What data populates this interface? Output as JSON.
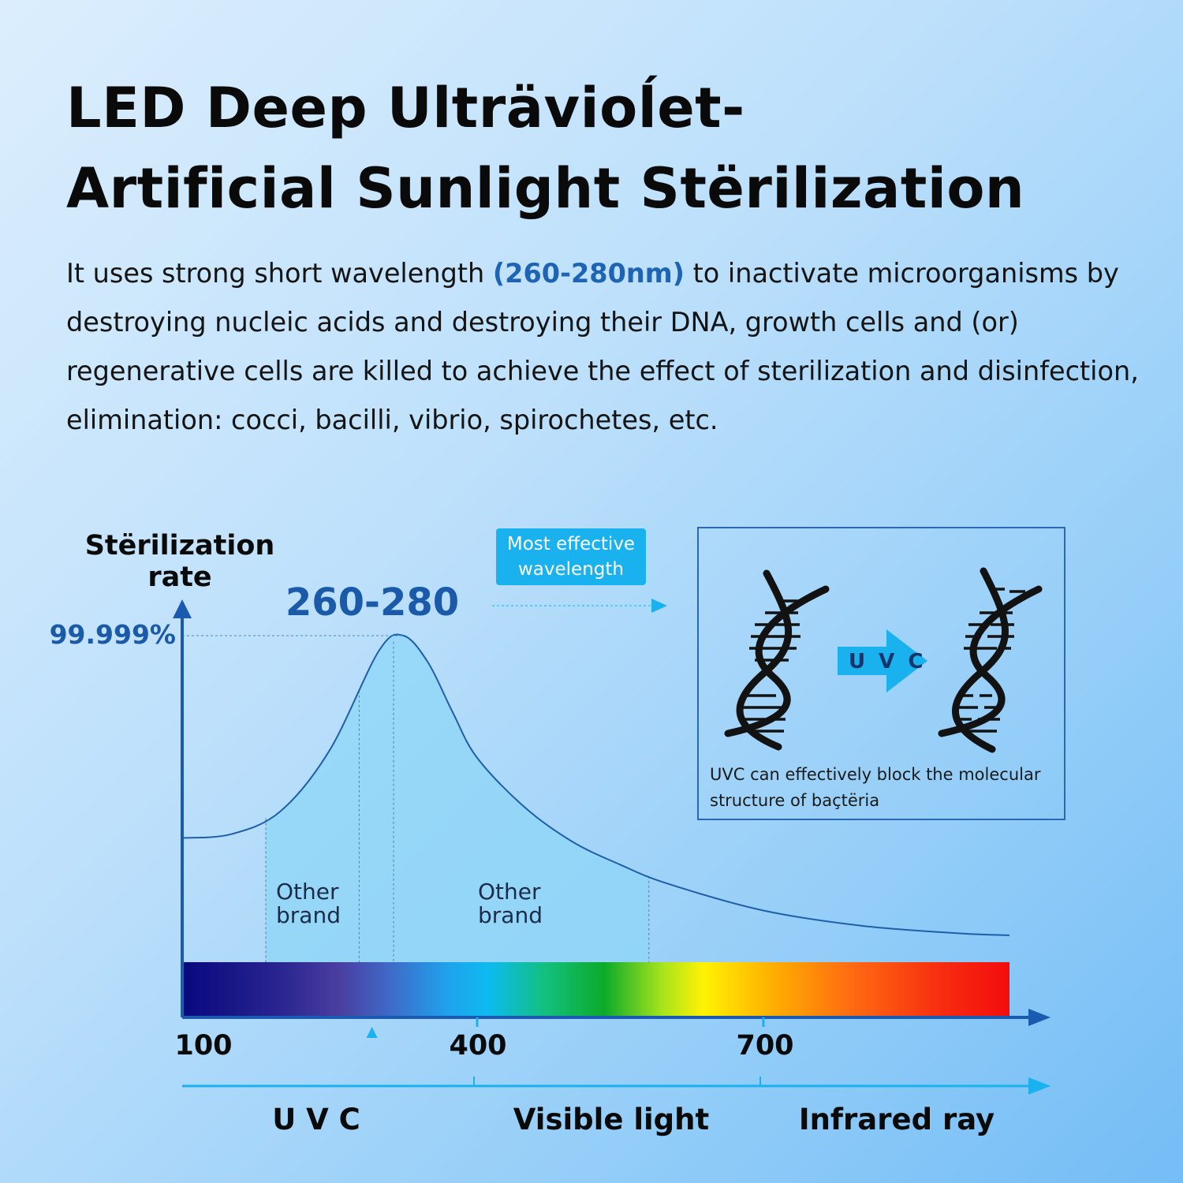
{
  "title": {
    "line1": "LED Deep Ulträvioĺet-",
    "line2": "Artificial Sunlight Stërilization"
  },
  "description": {
    "before": "It uses strong short wavelength ",
    "highlight": "(260-280nm)",
    "after": " to inactivate microorganisms by destroying nucleic acids and destroying their DNA, growth cells and (or) regenerative cells are killed to achieve the effect of sterilization and disinfection, elimination: cocci, bacilli, vibrio, spirochetes, etc."
  },
  "colors": {
    "accent": "#1a5aa8",
    "badge": "#1ab1ef",
    "axis": "#1a5ab0",
    "curve": "#1f5ea8",
    "fill": "#8ed6f7"
  },
  "chart_data": {
    "type": "area",
    "ylabel": "Stërilization rate",
    "y_peak_label": "99.999%",
    "peak_label": "260-280",
    "x_ticks": [
      "100",
      "400",
      "700"
    ],
    "x_tick_values": [
      100,
      400,
      700
    ],
    "xlim": [
      100,
      950
    ],
    "ylim": [
      0,
      100
    ],
    "series": [
      {
        "x": [
          100,
          150,
          200,
          250,
          300,
          325,
          350,
          375,
          400,
          450,
          500,
          550,
          600,
          700,
          800,
          900,
          950
        ],
        "values": [
          47,
          48,
          54,
          70,
          96,
          100,
          93,
          80,
          68,
          55,
          46,
          40,
          35,
          28,
          24,
          22,
          21.5
        ]
      }
    ],
    "brand_ranges": [
      {
        "label": "Other brand",
        "x_start": 185,
        "x_end": 280
      },
      {
        "label": "Other brand",
        "x_start": 315,
        "x_end": 580
      }
    ],
    "marker_x": 293,
    "bands": [
      {
        "label": "U V C",
        "x_start": 100,
        "x_end": 400
      },
      {
        "label": "Visible light",
        "x_start": 400,
        "x_end": 700
      },
      {
        "label": "Infrared ray",
        "x_start": 700,
        "x_end": 950
      }
    ],
    "callout": "Most effective wavelength"
  },
  "dna_panel": {
    "arrow_label": "U V C",
    "caption": "UVC can effectively block the molecular structure of baçtëria"
  }
}
